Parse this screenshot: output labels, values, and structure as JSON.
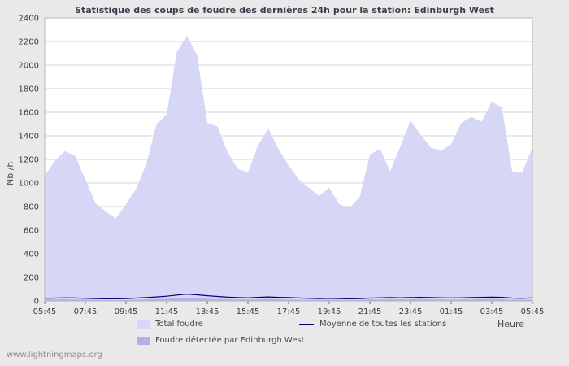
{
  "watermark": "www.lightningmaps.org",
  "chart_data": {
    "type": "area",
    "title": "Statistique des coups de foudre des dernières 24h pour la station: Edinburgh West",
    "ylabel": "Nb /h",
    "xlabel": "Heure",
    "ylim": [
      0,
      2400
    ],
    "ytick_step": 200,
    "grid": "horizontal",
    "legend_position": "bottom",
    "x_tick_labels": [
      "05:45",
      "07:45",
      "09:45",
      "11:45",
      "13:45",
      "15:45",
      "17:45",
      "19:45",
      "21:45",
      "23:45",
      "01:45",
      "03:45",
      "05:45"
    ],
    "x_sampling_minutes": 30,
    "series": [
      {
        "name": "Total foudre",
        "type": "area",
        "color": "#d6d6f6",
        "values": [
          1060,
          1190,
          1270,
          1230,
          1030,
          830,
          760,
          700,
          820,
          950,
          1160,
          1500,
          1580,
          2110,
          2250,
          2080,
          1510,
          1480,
          1260,
          1120,
          1090,
          1320,
          1460,
          1290,
          1150,
          1030,
          960,
          890,
          960,
          820,
          790,
          880,
          1240,
          1290,
          1100,
          1310,
          1530,
          1410,
          1300,
          1270,
          1330,
          1510,
          1560,
          1520,
          1690,
          1640,
          1100,
          1090,
          1300
        ]
      },
      {
        "name": "Foudre détectée par Edinburgh West",
        "type": "area",
        "color": "#b2b2e8",
        "values": [
          10,
          12,
          14,
          12,
          10,
          8,
          7,
          6,
          8,
          10,
          12,
          16,
          18,
          24,
          28,
          24,
          18,
          16,
          14,
          12,
          11,
          13,
          15,
          13,
          11,
          10,
          9,
          9,
          10,
          9,
          8,
          9,
          11,
          12,
          14,
          12,
          13,
          15,
          13,
          11,
          11,
          12,
          13,
          14,
          15,
          14,
          10,
          9,
          11
        ]
      },
      {
        "name": "Moyenne de toutes les stations",
        "type": "line",
        "color": "#000080",
        "values": [
          22,
          24,
          26,
          25,
          22,
          20,
          18,
          18,
          20,
          24,
          28,
          34,
          40,
          50,
          58,
          52,
          44,
          38,
          32,
          28,
          26,
          30,
          34,
          30,
          28,
          25,
          22,
          20,
          22,
          20,
          18,
          20,
          24,
          26,
          28,
          26,
          28,
          30,
          28,
          26,
          25,
          26,
          28,
          30,
          32,
          30,
          24,
          22,
          26
        ]
      }
    ]
  }
}
